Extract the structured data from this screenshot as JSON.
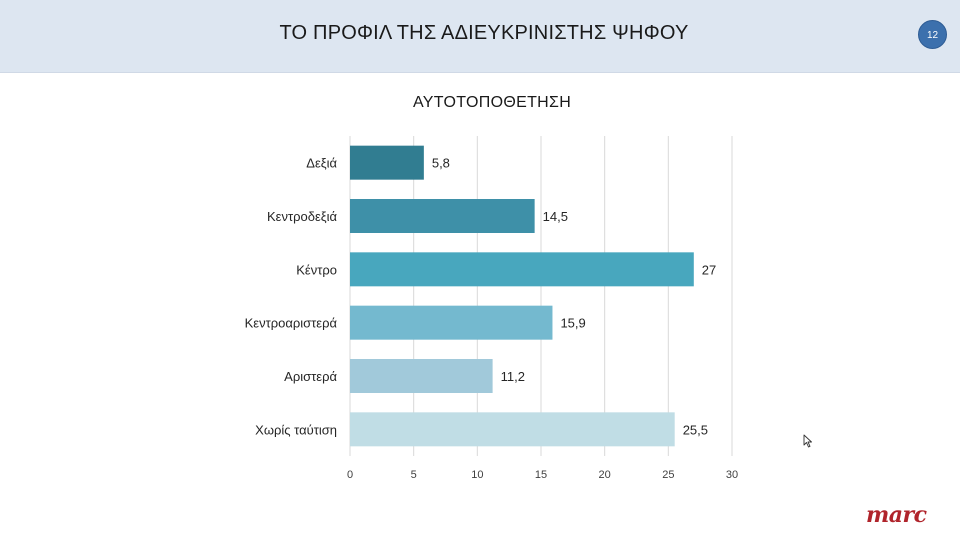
{
  "header": {
    "title": "ΤΟ ΠΡΟΦΙΛ ΤΗΣ ΑΔΙΕΥΚΡΙΝΙΣΤΗΣ ΨΗΦΟΥ",
    "page_number": "12"
  },
  "logo": "marc",
  "colors": {
    "header_bg": "#dde6f1",
    "badge": "#3c70ad",
    "logo": "#b0242b",
    "bars": [
      "#317d91",
      "#3e90a8",
      "#48a7be",
      "#74b9cf",
      "#a1c9da",
      "#c0dde5"
    ]
  },
  "chart_data": {
    "type": "bar",
    "orientation": "horizontal",
    "title": "ΑΥΤΟΤΟΠΟΘΕΤΗΣΗ",
    "categories": [
      "Δεξιά",
      "Κεντροδεξιά",
      "Κέντρο",
      "Κεντροαριστερά",
      "Αριστερά",
      "Χωρίς ταύτιση"
    ],
    "values": [
      5.8,
      14.5,
      27,
      15.9,
      11.2,
      25.5
    ],
    "value_labels": [
      "5,8",
      "14,5",
      "27",
      "15,9",
      "11,2",
      "25,5"
    ],
    "xlim": [
      0,
      30
    ],
    "xticks": [
      0,
      5,
      10,
      15,
      20,
      25,
      30
    ],
    "grid": true,
    "legend": "none"
  }
}
